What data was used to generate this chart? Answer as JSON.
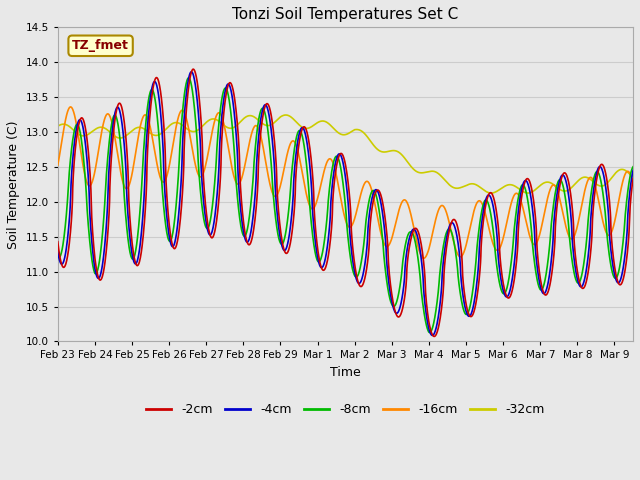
{
  "title": "Tonzi Soil Temperatures Set C",
  "xlabel": "Time",
  "ylabel": "Soil Temperature (C)",
  "ylim": [
    10.0,
    14.5
  ],
  "xlim": [
    0,
    15.5
  ],
  "fig_bg": "#e8e8e8",
  "plot_bg": "#e8e8e8",
  "annotation_label": "TZ_fmet",
  "annotation_color": "#880000",
  "annotation_bg": "#ffffcc",
  "annotation_border": "#aa8800",
  "legend_entries": [
    "-2cm",
    "-4cm",
    "-8cm",
    "-16cm",
    "-32cm"
  ],
  "line_colors": [
    "#cc0000",
    "#0000cc",
    "#00bb00",
    "#ff8800",
    "#cccc00"
  ],
  "line_width": 1.2,
  "x_tick_labels": [
    "Feb 23",
    "Feb 24",
    "Feb 25",
    "Feb 26",
    "Feb 27",
    "Feb 28",
    "Feb 29",
    "Mar 1",
    "Mar 2",
    "Mar 3",
    "Mar 4",
    "Mar 5",
    "Mar 6",
    "Mar 7",
    "Mar 8",
    "Mar 9"
  ],
  "y_ticks": [
    10.0,
    10.5,
    11.0,
    11.5,
    12.0,
    12.5,
    13.0,
    13.5,
    14.0,
    14.5
  ],
  "grid_color": "#cccccc"
}
